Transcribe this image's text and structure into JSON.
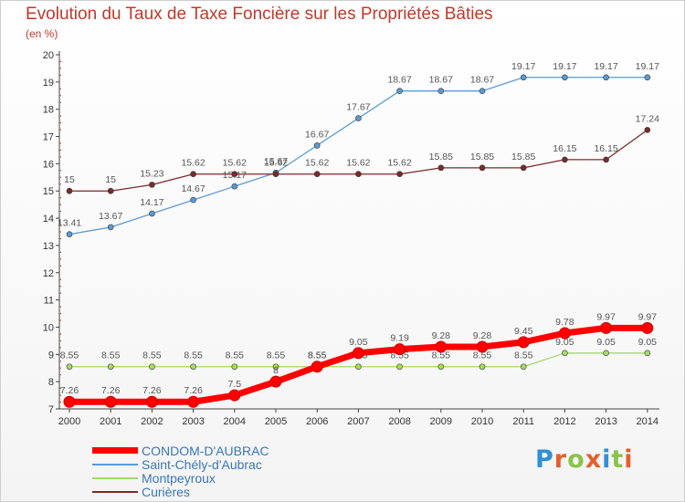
{
  "header": {
    "title": "Evolution du Taux de Taxe Foncière sur les Propriétés Bâties",
    "unit": "(en %)"
  },
  "logo": {
    "letters": [
      "P",
      "r",
      "o",
      "x",
      "i",
      "t",
      "i"
    ],
    "colors": [
      "#2f8fd8",
      "#e55f2a",
      "#8bc34a",
      "#e55f2a",
      "#2f8fd8",
      "#8bc34a",
      "#e55f2a"
    ]
  },
  "chart_data": {
    "type": "line",
    "title": "Evolution du Taux de Taxe Foncière sur les Propriétés Bâties",
    "ylabel": "(en %)",
    "x": [
      "2000",
      "2001",
      "2002",
      "2003",
      "2004",
      "2005",
      "2006",
      "2007",
      "2008",
      "2009",
      "2010",
      "2011",
      "2012",
      "2013",
      "2014"
    ],
    "y_ticks": [
      "7",
      "8",
      "9",
      "10",
      "11",
      "12",
      "13",
      "14",
      "15",
      "16",
      "17",
      "18",
      "19",
      "20"
    ],
    "ylim": [
      7,
      20
    ],
    "grid": false,
    "legend_position": "bottom",
    "series": [
      {
        "name": "Saint-Chély-d'Aubrac",
        "color": "#5b9bd5",
        "values": [
          13.41,
          13.67,
          14.17,
          14.67,
          15.17,
          15.67,
          16.67,
          17.67,
          18.67,
          18.67,
          18.67,
          19.17,
          19.17,
          19.17,
          19.17
        ],
        "labels": [
          "13.41",
          "13.67",
          "14.17",
          "14.67",
          "15.17",
          "15.67",
          "16.67",
          "17.67",
          "18.67",
          "18.67",
          "18.67",
          "19.17",
          "19.17",
          "19.17",
          "19.17"
        ]
      },
      {
        "name": "Curières",
        "color": "#7b2a2a",
        "values": [
          15,
          15,
          15.23,
          15.62,
          15.62,
          15.62,
          15.62,
          15.62,
          15.62,
          15.85,
          15.85,
          15.85,
          16.15,
          16.15,
          17.24
        ],
        "labels": [
          "15",
          "15",
          "15.23",
          "15.62",
          "15.62",
          "15.62",
          "15.62",
          "15.62",
          "15.62",
          "15.85",
          "15.85",
          "15.85",
          "16.15",
          "16.15",
          "17.24"
        ]
      },
      {
        "name": "Montpeyroux",
        "color": "#a6d96a",
        "values": [
          8.55,
          8.55,
          8.55,
          8.55,
          8.55,
          8.55,
          8.55,
          8.55,
          8.55,
          8.55,
          8.55,
          8.55,
          9.05,
          9.05,
          9.05
        ],
        "labels": [
          "8.55",
          "8.55",
          "8.55",
          "8.55",
          "8.55",
          "8.55",
          "8.55",
          "8.55",
          "8.55",
          "8.55",
          "8.55",
          "8.55",
          "9.05",
          "9.05",
          "9.05"
        ]
      },
      {
        "name": "CONDOM-D'AUBRAC",
        "color": "#ff0000",
        "values": [
          7.26,
          7.26,
          7.26,
          7.26,
          7.5,
          8,
          8.55,
          9.05,
          9.19,
          9.28,
          9.28,
          9.45,
          9.78,
          9.97,
          9.97
        ],
        "labels": [
          "7.26",
          "7.26",
          "7.26",
          "7.26",
          "7.5",
          "8",
          "8.55",
          "9.05",
          "9.19",
          "9.28",
          "9.28",
          "9.45",
          "9.78",
          "9.97",
          "9.97"
        ]
      }
    ],
    "legend_order": [
      "CONDOM-D'AUBRAC",
      "Saint-Chély-d'Aubrac",
      "Montpeyroux",
      "Curières"
    ]
  }
}
